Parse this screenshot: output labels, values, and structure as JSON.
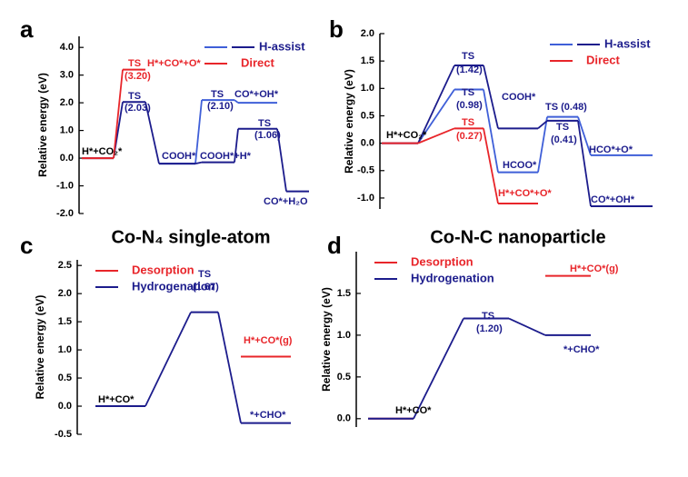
{
  "chart_data": [
    {
      "type": "energy",
      "title": "a",
      "caption": "Co-N₄ single-atom",
      "ylabel": "Relative energy (eV)",
      "ylim": [
        -2,
        4.4
      ],
      "yticks": [
        {
          "value": 4,
          "label": "4.0"
        },
        {
          "value": 3,
          "label": "3.0"
        },
        {
          "value": 2,
          "label": "2.0"
        },
        {
          "value": 1,
          "label": "1.0"
        },
        {
          "value": 0,
          "label": "0.0"
        },
        {
          "value": -1,
          "label": "-1.0"
        },
        {
          "value": -2,
          "label": "-2.0"
        }
      ],
      "legend": "upper right",
      "series": [
        {
          "color": "#3f5fd8",
          "values": [
            null,
            null,
            -0.2,
            2.1,
            2.0,
            null
          ]
        },
        {
          "name": "H-assist",
          "color": "#1c1c8c",
          "values": [
            0,
            2.03,
            -0.2,
            -0.15,
            1.06,
            -1.2
          ]
        },
        {
          "name": "Direct",
          "color": "#e8252a",
          "values": [
            0,
            3.2,
            null,
            null,
            null,
            null
          ]
        }
      ],
      "annotations": [
        {
          "text": "TS",
          "color": "#e8252a"
        },
        {
          "text": "(3.20)",
          "color": "#e8252a"
        },
        {
          "text": "H*+CO*+O*",
          "color": "#e8252a"
        },
        {
          "text": "TS",
          "color": "#1c1c8c"
        },
        {
          "text": "(2.03)",
          "color": "#1c1c8c"
        },
        {
          "text": "H*+CO₂*",
          "color": "#000000"
        },
        {
          "text": "COOH*",
          "color": "#1c1c8c"
        },
        {
          "text": "COOH*+H*",
          "color": "#1c1c8c"
        },
        {
          "text": "TS",
          "color": "#1c1c8c"
        },
        {
          "text": "(2.10)",
          "color": "#1c1c8c"
        },
        {
          "text": "CO*+OH*",
          "color": "#1c1c8c"
        },
        {
          "text": "TS",
          "color": "#1c1c8c"
        },
        {
          "text": "(1.06)",
          "color": "#1c1c8c"
        },
        {
          "text": "CO*+H₂O",
          "color": "#1c1c8c"
        }
      ]
    },
    {
      "type": "energy",
      "title": "b",
      "caption": "Co-N-C nanoparticle",
      "ylabel": "Relative energy (eV)",
      "ylim": [
        -1.2,
        2.0
      ],
      "yticks": [
        {
          "value": 2,
          "label": "2.0"
        },
        1.5,
        {
          "value": 1,
          "label": "1.0"
        },
        0.5,
        {
          "value": 0,
          "label": "0.0"
        },
        -0.5,
        {
          "value": -1,
          "label": "-1.0"
        }
      ],
      "legend": "upper right",
      "series": [
        {
          "color": "#3f5fd8",
          "values": [
            0,
            0.98,
            -0.53,
            0.48,
            -0.22
          ]
        },
        {
          "name": "H-assist",
          "color": "#1c1c8c",
          "values": [
            0,
            1.42,
            0.27,
            0.41,
            -1.15
          ]
        },
        {
          "name": "Direct",
          "color": "#e8252a",
          "values": [
            0,
            0.27,
            -1.1,
            null,
            null
          ]
        }
      ],
      "annotations": [
        {
          "text": "TS",
          "color": "#1c1c8c"
        },
        {
          "text": "(1.42)",
          "color": "#1c1c8c"
        },
        {
          "text": "TS",
          "color": "#1c1c8c"
        },
        {
          "text": "(0.98)",
          "color": "#1c1c8c"
        },
        {
          "text": "TS",
          "color": "#e8252a"
        },
        {
          "text": "(0.27)",
          "color": "#e8252a"
        },
        {
          "text": "H*+CO₂*",
          "color": "#000000"
        },
        {
          "text": "COOH*",
          "color": "#1c1c8c"
        },
        {
          "text": "HCOO*",
          "color": "#1c1c8c"
        },
        {
          "text": "TS (0.48)",
          "color": "#1c1c8c"
        },
        {
          "text": "TS",
          "color": "#1c1c8c"
        },
        {
          "text": "(0.41)",
          "color": "#1c1c8c"
        },
        {
          "text": "HCO*+O*",
          "color": "#1c1c8c"
        },
        {
          "text": "CO*+OH*",
          "color": "#1c1c8c"
        },
        {
          "text": "H*+CO*+O*",
          "color": "#e8252a"
        }
      ]
    },
    {
      "type": "energy",
      "title": "c",
      "ylabel": "Relative energy (eV)",
      "ylim": [
        -0.5,
        2.6
      ],
      "yticks": [
        2.5,
        {
          "value": 2,
          "label": "2.0"
        },
        1.5,
        {
          "value": 1,
          "label": "1.0"
        },
        0.5,
        {
          "value": 0,
          "label": "0.0"
        },
        -0.5
      ],
      "legend": "upper left",
      "series": [
        {
          "name": "Desorption",
          "color": "#e8252a",
          "values": [
            0,
            null,
            0.88
          ]
        },
        {
          "name": "Hydrogenation",
          "color": "#1c1c8c",
          "values": [
            0,
            1.67,
            -0.3
          ]
        }
      ],
      "annotations": [
        {
          "text": "TS",
          "color": "#1c1c8c"
        },
        {
          "text": "(1.67)",
          "color": "#1c1c8c"
        },
        {
          "text": "H*+CO*",
          "color": "#000000"
        },
        {
          "text": "H*+CO*(g)",
          "color": "#e8252a"
        },
        {
          "text": "*+CHO*",
          "color": "#1c1c8c"
        }
      ]
    },
    {
      "type": "energy",
      "title": "d",
      "ylabel": "Relative energy (eV)",
      "ylim": [
        -0.1,
        2.0
      ],
      "yticks": [
        {
          "value": 0,
          "label": "0.0"
        },
        0.5,
        {
          "value": 1,
          "label": "1.0"
        },
        1.5
      ],
      "legend": "upper left",
      "series": [
        {
          "name": "Desorption",
          "color": "#e8252a",
          "values": [
            0,
            null,
            1.71
          ]
        },
        {
          "name": "Hydrogenation",
          "color": "#1c1c8c",
          "values": [
            0,
            1.2,
            1.0
          ]
        }
      ],
      "annotations": [
        {
          "text": "H*+CO*(g)",
          "color": "#e8252a"
        },
        {
          "text": "TS",
          "color": "#1c1c8c"
        },
        {
          "text": "(1.20)",
          "color": "#1c1c8c"
        },
        {
          "text": "*+CHO*",
          "color": "#1c1c8c"
        },
        {
          "text": "H*+CO*",
          "color": "#000000"
        }
      ]
    }
  ]
}
